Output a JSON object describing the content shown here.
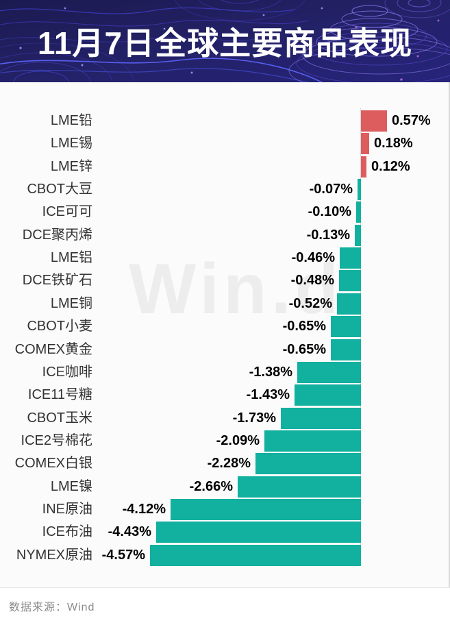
{
  "header": {
    "title": "11月7日全球主要商品表现"
  },
  "watermark": "Win.d",
  "footer": {
    "source_label": "数据来源：Wind"
  },
  "colors": {
    "banner_bg": "#1e1d5f",
    "title": "#ffffff",
    "positive_bar": "#dd5d5e",
    "negative_bar": "#12b09f",
    "value_text": "#000000",
    "category_text": "#333333",
    "watermark": "#ededed",
    "axis_line": "#d9d9d9",
    "footer_text": "#8b8b8b",
    "divider": "#e7e7e7",
    "contour_blue": "#4646d2",
    "contour_purple": "#8d7cf2"
  },
  "chart_data": {
    "type": "bar",
    "orientation": "horizontal",
    "title": "11月7日全球主要商品表现",
    "xlabel": "",
    "ylabel": "",
    "grid": false,
    "legend": false,
    "unit": "%",
    "categories": [
      "LME铅",
      "LME锡",
      "LME锌",
      "CBOT大豆",
      "ICE可可",
      "DCE聚丙烯",
      "LME铝",
      "DCE铁矿石",
      "LME铜",
      "CBOT小麦",
      "COMEX黄金",
      "ICE咖啡",
      "ICE11号糖",
      "CBOT玉米",
      "ICE2号棉花",
      "COMEX白银",
      "LME镍",
      "INE原油",
      "ICE布油",
      "NYMEX原油"
    ],
    "values": [
      0.57,
      0.18,
      0.12,
      -0.07,
      -0.1,
      -0.13,
      -0.46,
      -0.48,
      -0.52,
      -0.65,
      -0.65,
      -1.38,
      -1.43,
      -1.73,
      -2.09,
      -2.28,
      -2.66,
      -4.12,
      -4.43,
      -4.57
    ],
    "value_labels": [
      "0.57%",
      "0.18%",
      "0.12%",
      "-0.07%",
      "-0.10%",
      "-0.13%",
      "-0.46%",
      "-0.48%",
      "-0.52%",
      "-0.65%",
      "-0.65%",
      "-1.38%",
      "-1.43%",
      "-1.73%",
      "-2.09%",
      "-2.28%",
      "-2.66%",
      "-4.12%",
      "-4.43%",
      "-4.57%"
    ]
  }
}
